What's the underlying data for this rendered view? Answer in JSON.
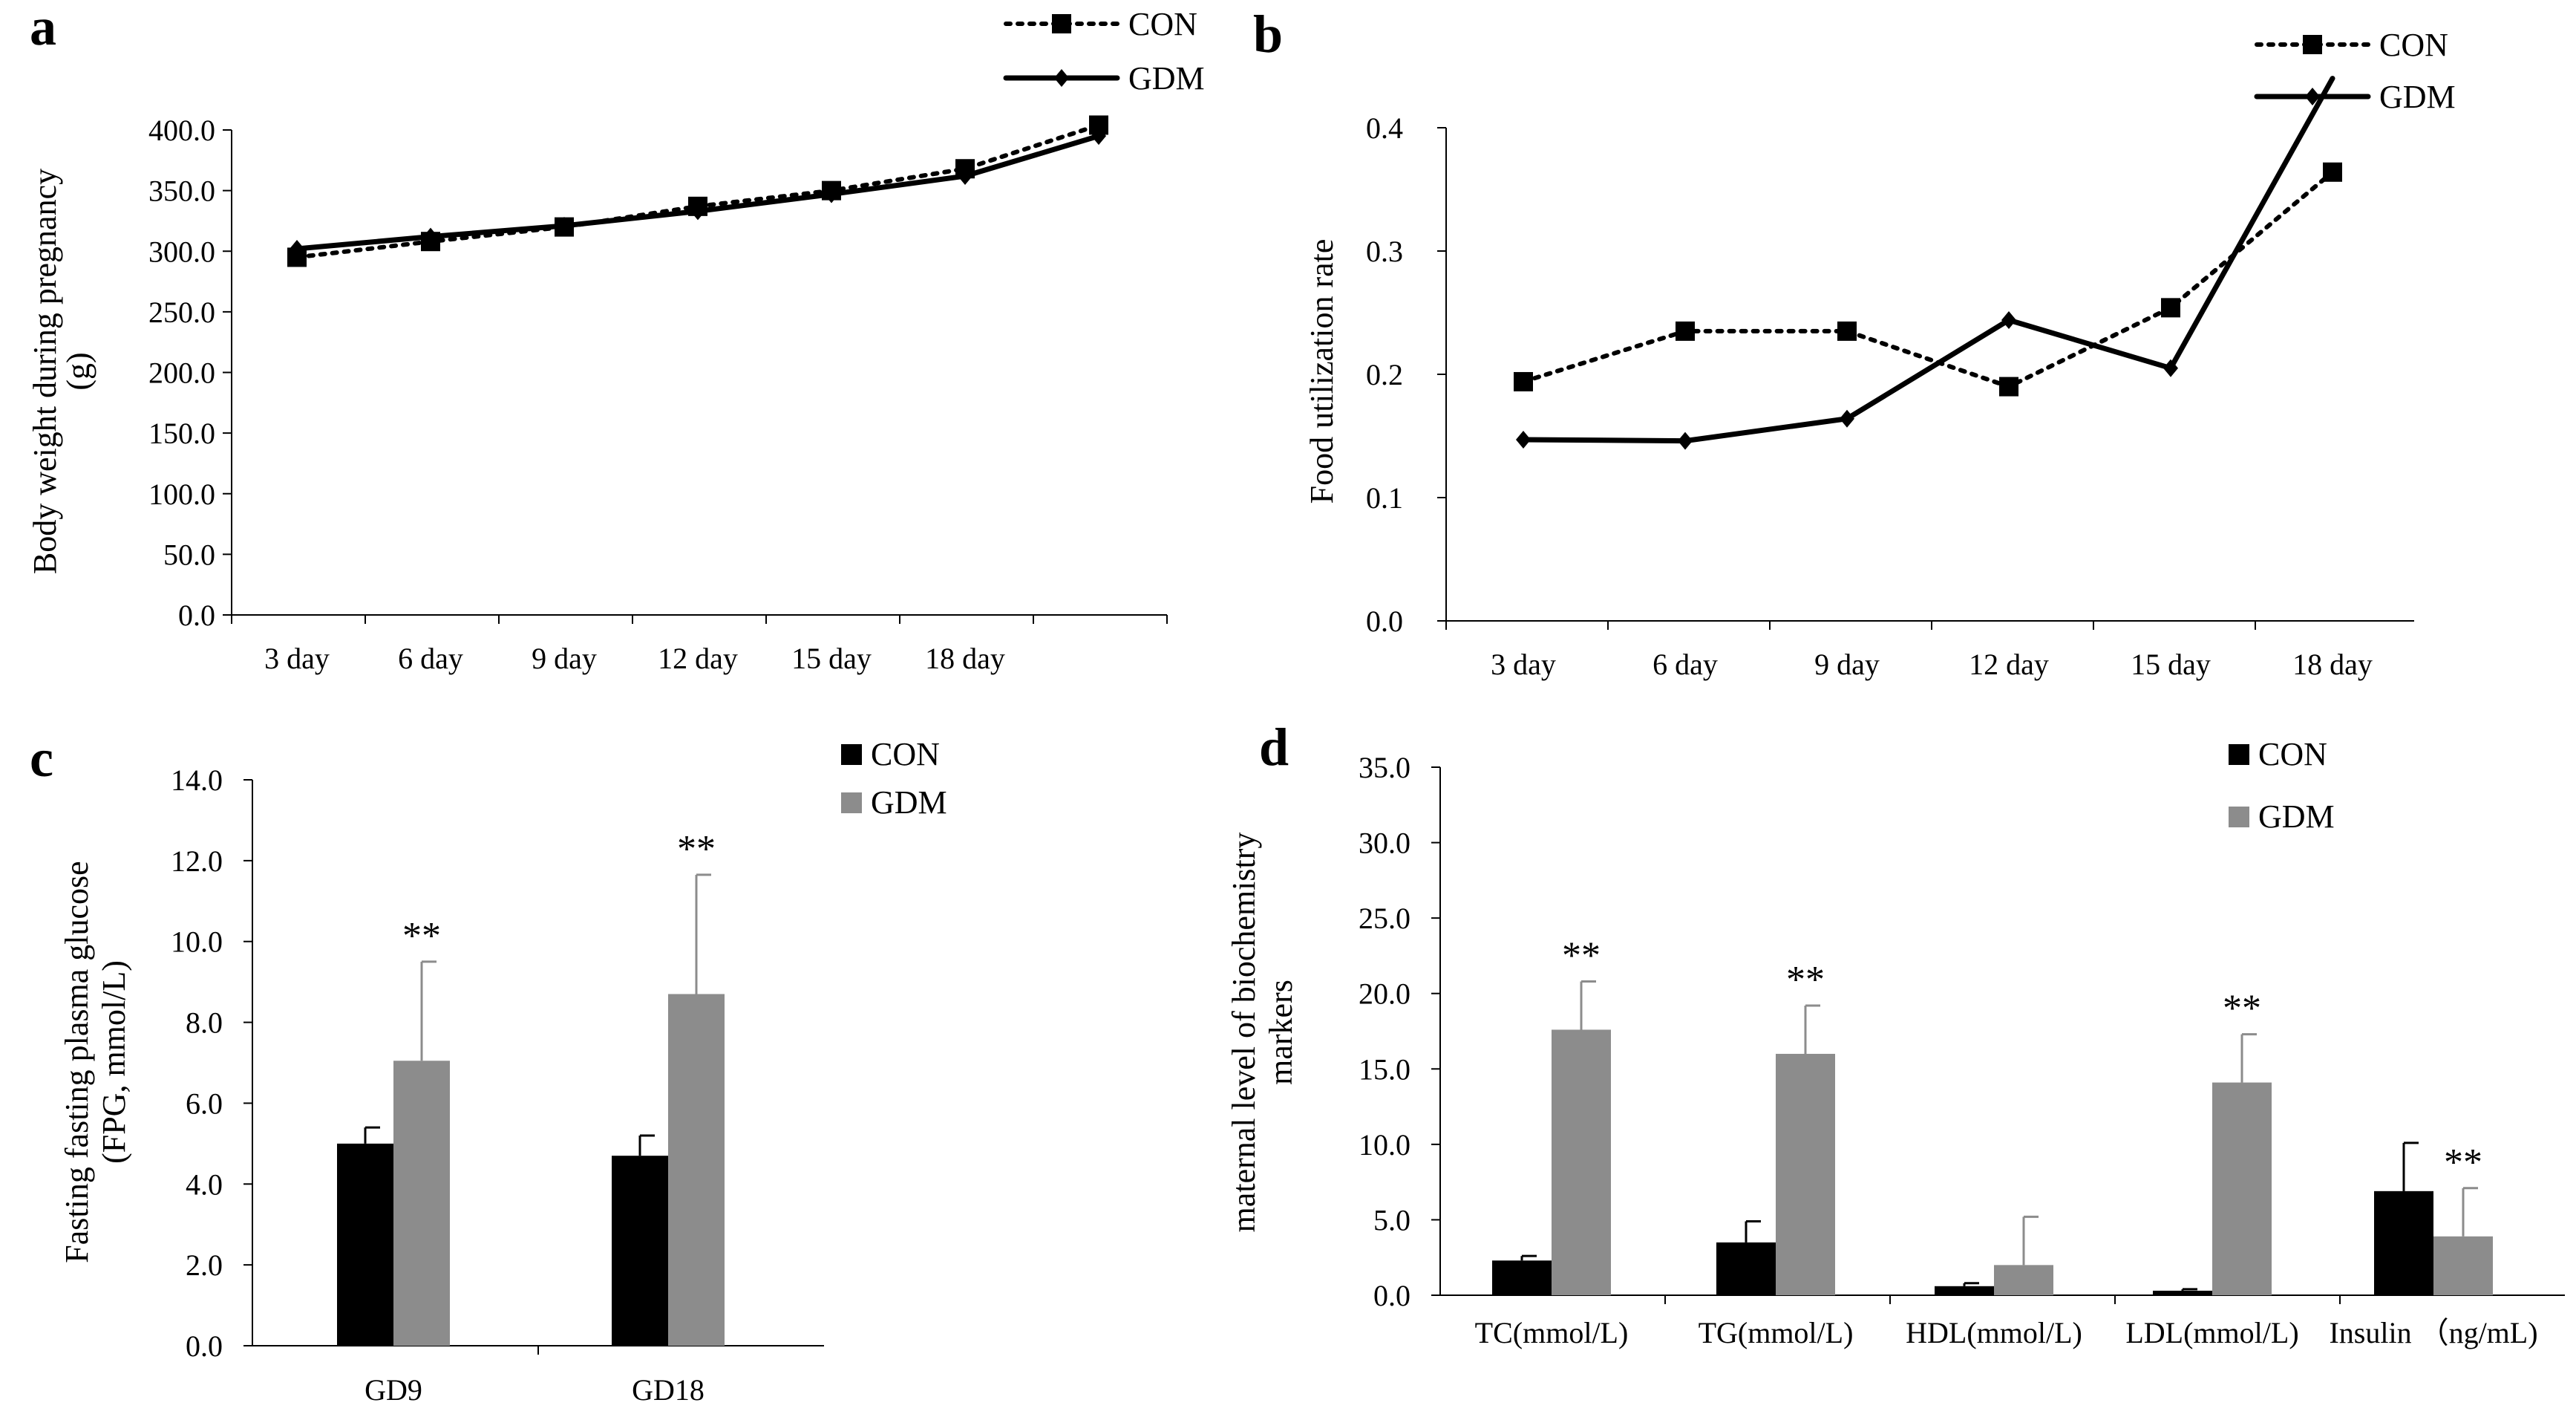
{
  "chart_data": [
    {
      "panel": "a",
      "type": "line",
      "ylabel": [
        "Body weight during pregnancy",
        "(g)"
      ],
      "xlabel": "",
      "ylim": [
        0,
        400
      ],
      "yticks": [
        "0.0",
        "50.0",
        "100.0",
        "150.0",
        "200.0",
        "250.0",
        "300.0",
        "350.0",
        "400.0"
      ],
      "categories": [
        "3 day",
        "6 day",
        "9 day",
        "12 day",
        "15 day",
        "18 day",
        ""
      ],
      "series": [
        {
          "name": "CON",
          "style": "dotted",
          "marker": "square",
          "values": [
            295,
            308,
            320,
            337,
            350,
            368,
            404
          ]
        },
        {
          "name": "GDM",
          "style": "solid",
          "marker": "diamond",
          "values": [
            302,
            312,
            321,
            333,
            347,
            362,
            395
          ]
        }
      ],
      "legend": "top-right"
    },
    {
      "panel": "b",
      "type": "line",
      "ylabel": [
        "Food utilization rate"
      ],
      "xlabel": "",
      "ylim": [
        0,
        0.4
      ],
      "yticks": [
        "0.0",
        "0.1",
        "0.2",
        "0.3",
        "0.4"
      ],
      "categories": [
        "3 day",
        "6 day",
        "9 day",
        "12 day",
        "15 day",
        "18 day"
      ],
      "series": [
        {
          "name": "CON",
          "style": "dotted",
          "marker": "square",
          "values": [
            0.194,
            0.235,
            0.235,
            0.19,
            0.254,
            0.364
          ]
        },
        {
          "name": "GDM",
          "style": "solid",
          "marker": "diamond",
          "values": [
            0.147,
            0.146,
            0.164,
            0.244,
            0.205,
            0.44
          ]
        }
      ],
      "legend": "top-right"
    },
    {
      "panel": "c",
      "type": "bar",
      "ylabel": [
        "Fasting fasting plasma glucose",
        "(FPG, mmol/L)"
      ],
      "xlabel": "",
      "ylim": [
        0,
        14
      ],
      "yticks": [
        "0.0",
        "2.0",
        "4.0",
        "6.0",
        "8.0",
        "10.0",
        "12.0",
        "14.0"
      ],
      "categories": [
        "GD9",
        "GD18"
      ],
      "series": [
        {
          "name": "CON",
          "color": "#000000",
          "values": [
            5.0,
            4.7
          ],
          "errors": [
            0.4,
            0.5
          ]
        },
        {
          "name": "GDM",
          "color": "#8c8c8c",
          "values": [
            7.05,
            8.7
          ],
          "errors": [
            2.45,
            2.95
          ]
        }
      ],
      "annotations": [
        {
          "category": 0,
          "series": "GDM",
          "text": "**"
        },
        {
          "category": 1,
          "series": "GDM",
          "text": "**"
        }
      ],
      "legend": "top-right"
    },
    {
      "panel": "d",
      "type": "bar",
      "ylabel": [
        "maternal level of  biochemistry",
        "markers"
      ],
      "xlabel": "",
      "ylim": [
        0,
        35
      ],
      "yticks": [
        "0.0",
        "5.0",
        "10.0",
        "15.0",
        "20.0",
        "25.0",
        "30.0",
        "35.0"
      ],
      "categories": [
        "TC(mmol/L)",
        "TG(mmol/L)",
        "HDL(mmol/L)",
        "LDL(mmol/L)",
        "Insulin （ng/mL)"
      ],
      "series": [
        {
          "name": "CON",
          "color": "#000000",
          "values": [
            2.3,
            3.5,
            0.6,
            0.3,
            6.9
          ],
          "errors": [
            0.3,
            1.4,
            0.2,
            0.1,
            3.2
          ]
        },
        {
          "name": "GDM",
          "color": "#8c8c8c",
          "values": [
            17.6,
            16.0,
            2.0,
            14.1,
            3.9
          ],
          "errors": [
            3.2,
            3.2,
            3.2,
            3.2,
            3.2
          ]
        }
      ],
      "annotations": [
        {
          "category": 0,
          "series": "GDM",
          "text": "**"
        },
        {
          "category": 1,
          "series": "GDM",
          "text": "**"
        },
        {
          "category": 3,
          "series": "GDM",
          "text": "**"
        },
        {
          "category": 4,
          "series": "GDM",
          "text": "**"
        }
      ],
      "legend": "top-right"
    }
  ]
}
